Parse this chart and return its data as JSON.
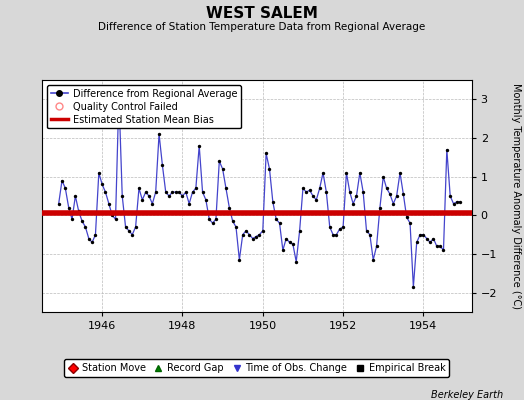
{
  "title": "WEST SALEM",
  "subtitle": "Difference of Station Temperature Data from Regional Average",
  "ylabel": "Monthly Temperature Anomaly Difference (°C)",
  "bias": 0.05,
  "xlim": [
    1944.5,
    1955.2
  ],
  "ylim": [
    -2.5,
    3.5
  ],
  "yticks": [
    -2,
    -1,
    0,
    1,
    2,
    3
  ],
  "xticks": [
    1946,
    1948,
    1950,
    1952,
    1954
  ],
  "bg_color": "#d8d8d8",
  "plot_bg_color": "#ffffff",
  "line_color": "#4444cc",
  "dot_color": "#000000",
  "bias_color": "#cc0000",
  "berkeley_earth_text": "Berkeley Earth",
  "data": [
    1944.917,
    0.3,
    1945.0,
    0.9,
    1945.083,
    0.7,
    1945.167,
    0.2,
    1945.25,
    -0.1,
    1945.333,
    0.5,
    1945.417,
    0.1,
    1945.5,
    -0.15,
    1945.583,
    -0.3,
    1945.667,
    -0.6,
    1945.75,
    -0.7,
    1945.833,
    -0.5,
    1945.917,
    1.1,
    1946.0,
    0.8,
    1946.083,
    0.6,
    1946.167,
    0.3,
    1946.25,
    0.0,
    1946.333,
    -0.1,
    1946.417,
    3.1,
    1946.5,
    0.5,
    1946.583,
    -0.3,
    1946.667,
    -0.4,
    1946.75,
    -0.5,
    1946.833,
    -0.3,
    1946.917,
    0.7,
    1947.0,
    0.4,
    1947.083,
    0.6,
    1947.167,
    0.5,
    1947.25,
    0.3,
    1947.333,
    0.6,
    1947.417,
    2.1,
    1947.5,
    1.3,
    1947.583,
    0.6,
    1947.667,
    0.5,
    1947.75,
    0.6,
    1947.833,
    0.6,
    1947.917,
    0.6,
    1948.0,
    0.5,
    1948.083,
    0.6,
    1948.167,
    0.3,
    1948.25,
    0.6,
    1948.333,
    0.7,
    1948.417,
    1.8,
    1948.5,
    0.6,
    1948.583,
    0.4,
    1948.667,
    -0.1,
    1948.75,
    -0.2,
    1948.833,
    -0.1,
    1948.917,
    1.4,
    1949.0,
    1.2,
    1949.083,
    0.7,
    1949.167,
    0.2,
    1949.25,
    -0.15,
    1949.333,
    -0.3,
    1949.417,
    -1.15,
    1949.5,
    -0.5,
    1949.583,
    -0.4,
    1949.667,
    -0.5,
    1949.75,
    -0.6,
    1949.833,
    -0.55,
    1949.917,
    -0.5,
    1950.0,
    -0.4,
    1950.083,
    1.6,
    1950.167,
    1.2,
    1950.25,
    0.35,
    1950.333,
    -0.1,
    1950.417,
    -0.2,
    1950.5,
    -0.9,
    1950.583,
    -0.6,
    1950.667,
    -0.7,
    1950.75,
    -0.75,
    1950.833,
    -1.2,
    1950.917,
    -0.4,
    1951.0,
    0.7,
    1951.083,
    0.6,
    1951.167,
    0.65,
    1951.25,
    0.5,
    1951.333,
    0.4,
    1951.417,
    0.7,
    1951.5,
    1.1,
    1951.583,
    0.6,
    1951.667,
    -0.3,
    1951.75,
    -0.5,
    1951.833,
    -0.5,
    1951.917,
    -0.35,
    1952.0,
    -0.3,
    1952.083,
    1.1,
    1952.167,
    0.6,
    1952.25,
    0.3,
    1952.333,
    0.5,
    1952.417,
    1.1,
    1952.5,
    0.6,
    1952.583,
    -0.4,
    1952.667,
    -0.5,
    1952.75,
    -1.15,
    1952.833,
    -0.8,
    1952.917,
    0.2,
    1953.0,
    1.0,
    1953.083,
    0.7,
    1953.167,
    0.55,
    1953.25,
    0.3,
    1953.333,
    0.5,
    1953.417,
    1.1,
    1953.5,
    0.55,
    1953.583,
    -0.05,
    1953.667,
    -0.2,
    1953.75,
    -1.85,
    1953.833,
    -0.7,
    1953.917,
    -0.5,
    1954.0,
    -0.5,
    1954.083,
    -0.6,
    1954.167,
    -0.7,
    1954.25,
    -0.6,
    1954.333,
    -0.8,
    1954.417,
    -0.8,
    1954.5,
    -0.9,
    1954.583,
    1.7,
    1954.667,
    0.5,
    1954.75,
    0.3,
    1954.833,
    0.35,
    1954.917,
    0.35
  ]
}
